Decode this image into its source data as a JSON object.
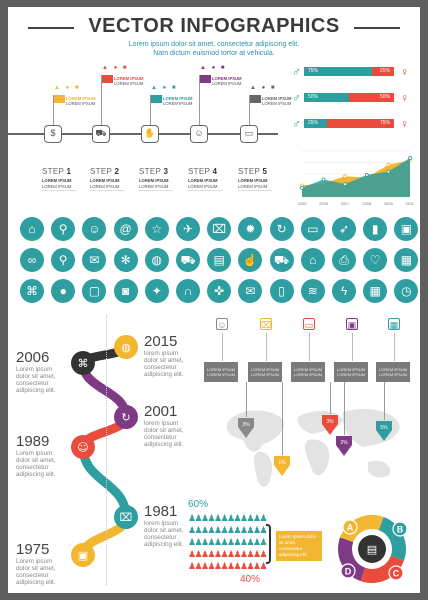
{
  "header": {
    "title": "VECTOR INFOGRAPHICS",
    "subtitle_line1": "Lorem ipsum dolor sit amet, consectetur adipiscing elit.",
    "subtitle_line2": "Nam dictum euismod tortor at vehicula."
  },
  "steps": [
    {
      "label": "STEP",
      "num": "1",
      "text1": "LOREM IPSUM",
      "text2": "LOREM IPSUM",
      "flag_title": "LOREM IPSUM",
      "flag_text": "LOREM IPSUM",
      "color": "#f2b630",
      "icon": "money-bag-icon"
    },
    {
      "label": "STEP",
      "num": "2",
      "text1": "LOREM IPSUM",
      "text2": "LOREM IPSUM",
      "flag_title": "LOREM IPSUM",
      "flag_text": "LOREM IPSUM",
      "color": "#e94b3c",
      "icon": "truck-icon"
    },
    {
      "label": "STEP",
      "num": "3",
      "text1": "LOREM IPSUM",
      "text2": "LOREM IPSUM",
      "flag_title": "LOREM IPSUM",
      "flag_text": "LOREM IPSUM",
      "color": "#2e9ea0",
      "icon": "hand-icon"
    },
    {
      "label": "STEP",
      "num": "4",
      "text1": "LOREM IPSUM",
      "text2": "LOREM IPSUM",
      "flag_title": "LOREM IPSUM",
      "flag_text": "LOREM IPSUM",
      "color": "#7e3a85",
      "icon": "person-icon"
    },
    {
      "label": "STEP",
      "num": "5",
      "text1": "LOREM IPSUM",
      "text2": "LOREM IPSUM",
      "flag_title": "LOREM IPSUM",
      "flag_text": "LOREM IPSUM",
      "color": "#666666",
      "icon": "computer-icon"
    }
  ],
  "gender_bars": [
    {
      "left": "75%",
      "right": "25%",
      "fill": 0.75
    },
    {
      "left": "50%",
      "right": "50%",
      "fill": 0.5
    },
    {
      "left": "25%",
      "right": "75%",
      "fill": 0.25
    }
  ],
  "chart_data": {
    "type": "area",
    "categories": [
      "2005",
      "2006",
      "2007",
      "2008",
      "2009",
      "2010"
    ],
    "series": [
      {
        "values": [
          20,
          38,
          28,
          48,
          55,
          85
        ]
      },
      {
        "values": [
          25,
          30,
          45,
          42,
          70,
          80
        ]
      }
    ],
    "ylim": [
      0,
      100
    ],
    "colors": [
      "#2e9ea0",
      "#f2b630"
    ]
  },
  "icon_grid": [
    "home-icon",
    "pin-icon",
    "contact-icon",
    "at-icon",
    "star-icon",
    "megaphone-icon",
    "gift-icon",
    "gear-icon",
    "24h-icon",
    "laptop-icon",
    "rocket-icon",
    "chart-icon",
    "briefcase-icon",
    "link-icon",
    "search-icon",
    "chat-icon",
    "settings-icon",
    "globe-icon",
    "cart-icon",
    "wallet-icon",
    "like-icon",
    "truck-icon",
    "shop-icon",
    "printer-icon",
    "heart-icon",
    "chart2-icon",
    "bank-icon",
    "piggy-icon",
    "monitor-icon",
    "camera-icon",
    "bulb-icon",
    "headset-icon",
    "gamepad-icon",
    "mail-icon",
    "phone-icon",
    "wifi-icon",
    "plug-icon",
    "calendar-icon",
    "clock-icon"
  ],
  "timeline": [
    {
      "year": "2015",
      "t1": "lorem ipsum",
      "t2": "dolor sit amet,",
      "t3": "consectetur",
      "t4": "adipiscing elit.",
      "color": "#f2b630",
      "icon": "globe-icon"
    },
    {
      "year": "2006",
      "t1": "Lorem ipsum",
      "t2": "dolor sit amet,",
      "t3": "consectetur",
      "t4": "adipiscing elit.",
      "color": "#333333",
      "icon": "bank-icon"
    },
    {
      "year": "2001",
      "t1": "lorem ipsum",
      "t2": "dolor sit amet,",
      "t3": "consectetur",
      "t4": "adipiscing elit.",
      "color": "#7e3a85",
      "icon": "24h-icon"
    },
    {
      "year": "1989",
      "t1": "Lorem ipsum",
      "t2": "dolor sit amet,",
      "t3": "consectetur",
      "t4": "adipiscing elit.",
      "color": "#e94b3c",
      "icon": "contact-icon"
    },
    {
      "year": "1981",
      "t1": "lorem ipsum",
      "t2": "dolor sit amet,",
      "t3": "consectetur",
      "t4": "adipiscing elit.",
      "color": "#2e9ea0",
      "icon": "gift-icon"
    },
    {
      "year": "1975",
      "t1": "Lorem ipsum",
      "t2": "dolor sit amet,",
      "t3": "consectetur",
      "t4": "adipiscing elit.",
      "color": "#f2b630",
      "icon": "briefcase-icon"
    }
  ],
  "map_cards": [
    {
      "pct": "3%",
      "color": "#888888",
      "icon": "contact-icon",
      "t1": "LOREM IPSUM",
      "t2": "LOREM IPSUM"
    },
    {
      "pct": "1%",
      "color": "#f2b630",
      "icon": "gift-icon",
      "t1": "LOREM IPSUM",
      "t2": "LOREM IPSUM"
    },
    {
      "pct": "3%",
      "color": "#e94b3c",
      "icon": "laptop-icon",
      "t1": "LOREM IPSUM",
      "t2": "LOREM IPSUM"
    },
    {
      "pct": "2%",
      "color": "#7e3a85",
      "icon": "briefcase-icon",
      "t1": "LOREM IPSUM",
      "t2": "LOREM IPSUM"
    },
    {
      "pct": "5%",
      "color": "#2e9ea0",
      "icon": "calendar-icon",
      "t1": "LOREM IPSUM",
      "t2": "LOREM IPSUM"
    }
  ],
  "people": {
    "top_pct": "60%",
    "bottom_pct": "40%",
    "note": "Lorem ipsum dolor sit amet, consectetur adipiscing elit.",
    "top_fraction": 0.6,
    "colors": [
      "#2e9ea0",
      "#e94b3c"
    ]
  },
  "cycle": {
    "letters": [
      "A",
      "B",
      "C",
      "D"
    ],
    "colors": [
      "#f2b630",
      "#2e9ea0",
      "#e94b3c",
      "#7e3a85"
    ],
    "center_icon": "wallet-icon"
  }
}
